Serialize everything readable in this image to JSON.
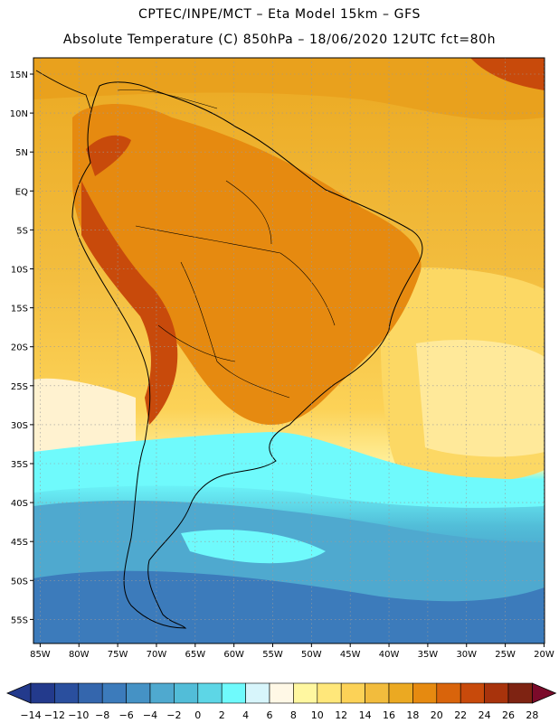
{
  "header": {
    "title_line1": "CPTEC/INPE/MCT –  Eta Model 15km – GFS",
    "title_line2": "Absolute Temperature (C) 850hPa – 18/06/2020 12UTC fct=80h"
  },
  "map": {
    "lon_labels": [
      "85W",
      "80W",
      "75W",
      "70W",
      "65W",
      "60W",
      "55W",
      "50W",
      "45W",
      "40W",
      "35W",
      "30W",
      "25W",
      "20W"
    ],
    "lat_labels": [
      "15N",
      "10N",
      "5N",
      "EQ",
      "5S",
      "10S",
      "15S",
      "20S",
      "25S",
      "30S",
      "35S",
      "40S",
      "45S",
      "50S",
      "55S"
    ],
    "grid_style": "dotted"
  },
  "colorbar": {
    "ticks": [
      "-14",
      "-12",
      "-10",
      "-8",
      "-6",
      "-4",
      "-2",
      "0",
      "2",
      "4",
      "6",
      "8",
      "10",
      "12",
      "14",
      "16",
      "18",
      "20",
      "22",
      "24",
      "26",
      "28"
    ],
    "colors": [
      "#233a8c",
      "#2a4f9e",
      "#3466ad",
      "#3c7bbb",
      "#4592c5",
      "#4fa9cf",
      "#52bdd8",
      "#5dd6e6",
      "#6ffafc",
      "#d7f5fb",
      "#fff8e6",
      "#fff7a0",
      "#ffe77a",
      "#fcd257",
      "#f2bc3d",
      "#eba922",
      "#e68a10",
      "#d9640b",
      "#c84a0b",
      "#a8330c",
      "#7e2312"
    ]
  }
}
